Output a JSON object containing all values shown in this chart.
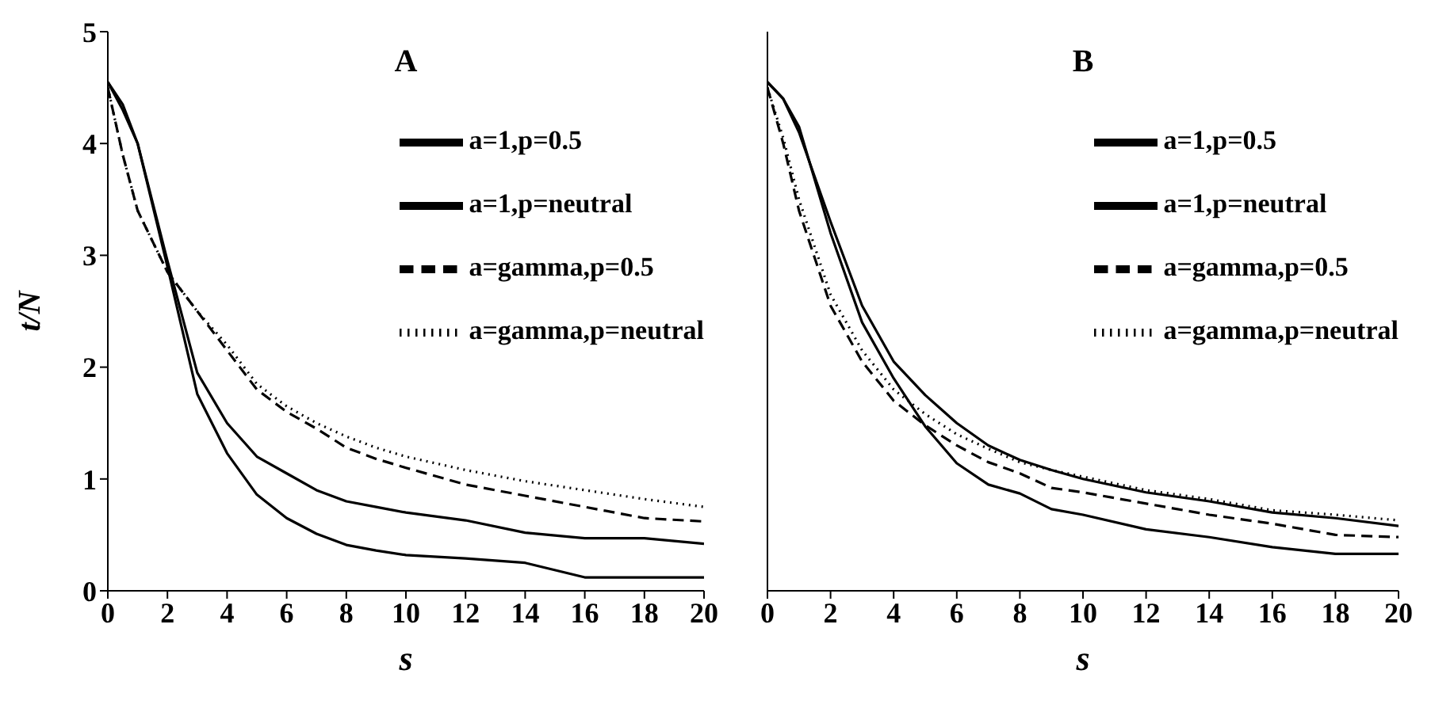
{
  "chart_data": [
    {
      "type": "line",
      "title": "A",
      "xlabel": "s",
      "ylabel": "t/N",
      "x": [
        0,
        0.5,
        1,
        2,
        3,
        4,
        5,
        6,
        7,
        8,
        9,
        10,
        12,
        14,
        16,
        18,
        20
      ],
      "xlim": [
        0,
        20
      ],
      "xticks": [
        0,
        2,
        4,
        6,
        8,
        10,
        12,
        14,
        16,
        18,
        20
      ],
      "ylim": [
        0,
        5
      ],
      "yticks": [
        0,
        1,
        2,
        3,
        4,
        5
      ],
      "grid": false,
      "legend": "top right",
      "marker": "none",
      "series": [
        {
          "name": "a=1,p=0.5",
          "color": "#000000",
          "line_style": "solid",
          "values": [
            4.55,
            4.35,
            4.0,
            2.9,
            1.76,
            1.23,
            0.86,
            0.65,
            0.51,
            0.41,
            0.36,
            0.32,
            0.29,
            0.25,
            0.12,
            0.12,
            0.12
          ]
        },
        {
          "name": "a=1,p=neutral",
          "color": "#000000",
          "line_style": "solid",
          "values": [
            4.55,
            4.3,
            4.0,
            2.95,
            1.95,
            1.5,
            1.2,
            1.05,
            0.9,
            0.8,
            0.75,
            0.7,
            0.63,
            0.52,
            0.47,
            0.47,
            0.42
          ]
        },
        {
          "name": "a=gamma,p=0.5",
          "color": "#000000",
          "line_style": "dashed",
          "values": [
            4.5,
            3.9,
            3.4,
            2.85,
            2.5,
            2.15,
            1.8,
            1.6,
            1.45,
            1.28,
            1.18,
            1.1,
            0.95,
            0.85,
            0.75,
            0.65,
            0.62
          ]
        },
        {
          "name": "a=gamma,p=neutral",
          "color": "#000000",
          "line_style": "dotted",
          "values": [
            4.5,
            3.9,
            3.4,
            2.85,
            2.5,
            2.2,
            1.85,
            1.65,
            1.5,
            1.38,
            1.28,
            1.2,
            1.08,
            0.98,
            0.9,
            0.82,
            0.75
          ]
        }
      ]
    },
    {
      "type": "line",
      "title": "B",
      "xlabel": "s",
      "x": [
        0,
        0.5,
        1,
        2,
        3,
        4,
        5,
        6,
        7,
        8,
        9,
        10,
        12,
        14,
        16,
        18,
        20
      ],
      "xlim": [
        0,
        20
      ],
      "xticks": [
        0,
        2,
        4,
        6,
        8,
        10,
        12,
        14,
        16,
        18,
        20
      ],
      "ylim": [
        0,
        5
      ],
      "yticks": [
        0,
        1,
        2,
        3,
        4,
        5
      ],
      "tick_labels": "x",
      "grid": false,
      "legend": "top right",
      "marker": "none",
      "series": [
        {
          "name": "a=1,p=0.5",
          "color": "#000000",
          "line_style": "solid",
          "values": [
            4.55,
            4.4,
            4.15,
            3.2,
            2.4,
            1.9,
            1.47,
            1.14,
            0.95,
            0.87,
            0.73,
            0.68,
            0.55,
            0.48,
            0.39,
            0.33,
            0.33
          ]
        },
        {
          "name": "a=1,p=neutral",
          "color": "#000000",
          "line_style": "solid",
          "values": [
            4.55,
            4.4,
            4.1,
            3.3,
            2.55,
            2.05,
            1.75,
            1.5,
            1.3,
            1.17,
            1.08,
            1.0,
            0.88,
            0.8,
            0.7,
            0.65,
            0.58
          ]
        },
        {
          "name": "a=gamma,p=0.5",
          "color": "#000000",
          "line_style": "dashed",
          "values": [
            4.5,
            4.0,
            3.4,
            2.55,
            2.05,
            1.7,
            1.48,
            1.3,
            1.15,
            1.05,
            0.92,
            0.88,
            0.78,
            0.68,
            0.6,
            0.5,
            0.48
          ]
        },
        {
          "name": "a=gamma,p=neutral",
          "color": "#000000",
          "line_style": "dotted",
          "values": [
            4.5,
            4.05,
            3.5,
            2.65,
            2.15,
            1.8,
            1.58,
            1.4,
            1.27,
            1.15,
            1.08,
            1.02,
            0.9,
            0.82,
            0.72,
            0.68,
            0.63
          ]
        }
      ]
    }
  ]
}
